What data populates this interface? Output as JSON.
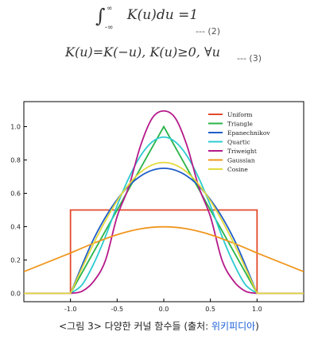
{
  "equations": {
    "eq1": {
      "upper": "∞",
      "lower": "-∞",
      "body": "K(u)du =1",
      "tag": "--- (2)"
    },
    "eq2": {
      "body": "K(u)=K(−u),  K(u)≥0,  ∀u",
      "tag": "--- (3)"
    }
  },
  "caption": {
    "prefix": "<그림 3> 다양한 커널 함수들 (출처: ",
    "source": "위키피디아",
    "suffix": ")"
  },
  "chart_data": {
    "type": "line",
    "title": "",
    "xlabel": "",
    "ylabel": "",
    "xlim": [
      -1.5,
      1.5
    ],
    "ylim": [
      -0.05,
      1.15
    ],
    "xticks": [
      "-1.0",
      "-0.5",
      "0.0",
      "0.5",
      "1.0"
    ],
    "yticks": [
      "0.0",
      "0.2",
      "0.4",
      "0.6",
      "0.8",
      "1.0"
    ],
    "grid": false,
    "legend_position": "top-right",
    "series": [
      {
        "name": "Uniform",
        "color": "#e34a2c",
        "points": [
          [
            -1.5,
            0
          ],
          [
            -1,
            0
          ],
          [
            -1,
            0.5
          ],
          [
            1,
            0.5
          ],
          [
            1,
            0
          ],
          [
            1.5,
            0
          ]
        ]
      },
      {
        "name": "Triangle",
        "color": "#2ab34a",
        "points": [
          [
            -1.5,
            0
          ],
          [
            -1,
            0
          ],
          [
            0,
            1
          ],
          [
            1,
            0
          ],
          [
            1.5,
            0
          ]
        ]
      },
      {
        "name": "Epanechnikov",
        "color": "#1e5cc8",
        "points": [
          [
            -1.5,
            0
          ],
          [
            -1,
            0
          ],
          [
            -0.75,
            0.328
          ],
          [
            -0.5,
            0.5625
          ],
          [
            -0.25,
            0.703
          ],
          [
            0,
            0.75
          ],
          [
            0.25,
            0.703
          ],
          [
            0.5,
            0.5625
          ],
          [
            0.75,
            0.328
          ],
          [
            1,
            0
          ],
          [
            1.5,
            0
          ]
        ]
      },
      {
        "name": "Quartic",
        "color": "#2ecbd0",
        "points": [
          [
            -1.5,
            0
          ],
          [
            -1,
            0
          ],
          [
            -0.875,
            0.052
          ],
          [
            -0.75,
            0.179
          ],
          [
            -0.625,
            0.341
          ],
          [
            -0.5,
            0.527
          ],
          [
            -0.375,
            0.692
          ],
          [
            -0.25,
            0.824
          ],
          [
            -0.125,
            0.908
          ],
          [
            0,
            0.9375
          ],
          [
            0.125,
            0.908
          ],
          [
            0.25,
            0.824
          ],
          [
            0.375,
            0.692
          ],
          [
            0.5,
            0.527
          ],
          [
            0.625,
            0.341
          ],
          [
            0.75,
            0.179
          ],
          [
            0.875,
            0.052
          ],
          [
            1,
            0
          ],
          [
            1.5,
            0
          ]
        ]
      },
      {
        "name": "Triweight",
        "color": "#b5198a",
        "points": [
          [
            -1.5,
            0
          ],
          [
            -1,
            0
          ],
          [
            -0.875,
            0.013
          ],
          [
            -0.75,
            0.073
          ],
          [
            -0.625,
            0.198
          ],
          [
            -0.5,
            0.461
          ],
          [
            -0.375,
            0.639
          ],
          [
            -0.25,
            0.884
          ],
          [
            -0.125,
            1.05
          ],
          [
            0,
            1.094
          ],
          [
            0.125,
            1.05
          ],
          [
            0.25,
            0.884
          ],
          [
            0.375,
            0.639
          ],
          [
            0.5,
            0.461
          ],
          [
            0.625,
            0.198
          ],
          [
            0.75,
            0.073
          ],
          [
            0.875,
            0.013
          ],
          [
            1,
            0
          ],
          [
            1.5,
            0
          ]
        ]
      },
      {
        "name": "Gaussian",
        "color": "#f0961e",
        "points": [
          [
            -1.5,
            0.13
          ],
          [
            -1.25,
            0.183
          ],
          [
            -1,
            0.242
          ],
          [
            -0.75,
            0.301
          ],
          [
            -0.5,
            0.352
          ],
          [
            -0.25,
            0.387
          ],
          [
            0,
            0.399
          ],
          [
            0.25,
            0.387
          ],
          [
            0.5,
            0.352
          ],
          [
            0.75,
            0.301
          ],
          [
            1,
            0.242
          ],
          [
            1.25,
            0.183
          ],
          [
            1.5,
            0.13
          ]
        ]
      },
      {
        "name": "Cosine",
        "color": "#e3d93c",
        "points": [
          [
            -1.5,
            0
          ],
          [
            -1,
            0
          ],
          [
            -0.875,
            0.153
          ],
          [
            -0.75,
            0.301
          ],
          [
            -0.625,
            0.436
          ],
          [
            -0.5,
            0.555
          ],
          [
            -0.375,
            0.653
          ],
          [
            -0.25,
            0.726
          ],
          [
            -0.125,
            0.77
          ],
          [
            0,
            0.785
          ],
          [
            0.125,
            0.77
          ],
          [
            0.25,
            0.726
          ],
          [
            0.375,
            0.653
          ],
          [
            0.5,
            0.555
          ],
          [
            0.625,
            0.436
          ],
          [
            0.75,
            0.301
          ],
          [
            0.875,
            0.153
          ],
          [
            1,
            0
          ],
          [
            1.5,
            0
          ]
        ]
      }
    ]
  }
}
